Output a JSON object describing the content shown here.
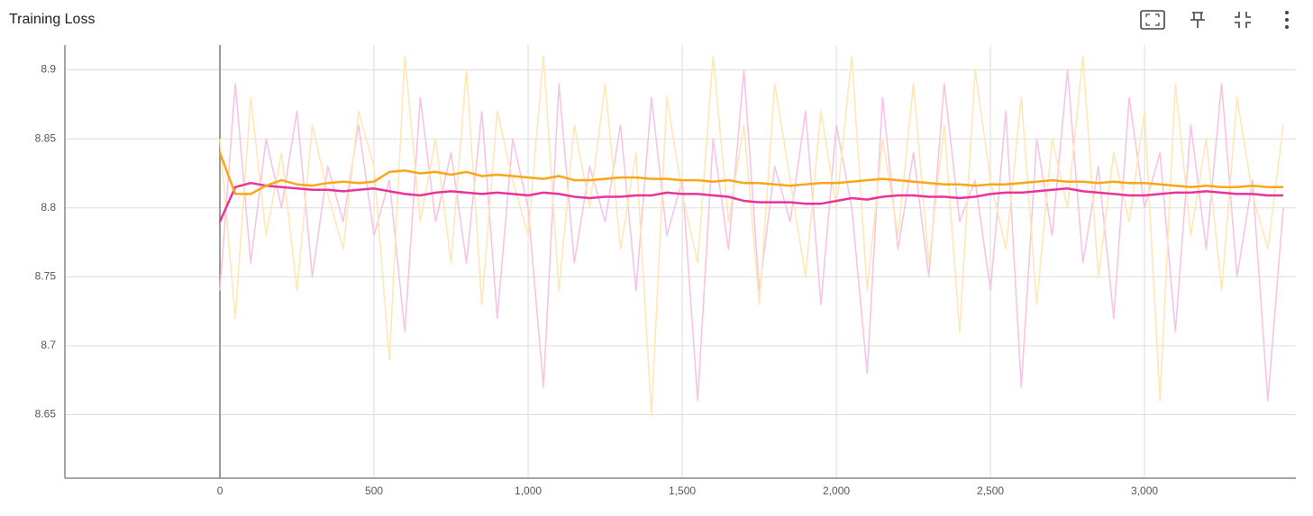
{
  "chart_data": {
    "type": "line",
    "title": "Training Loss",
    "x": [
      0,
      50,
      100,
      150,
      200,
      250,
      300,
      350,
      400,
      450,
      500,
      550,
      600,
      650,
      700,
      750,
      800,
      850,
      900,
      950,
      1000,
      1050,
      1100,
      1150,
      1200,
      1250,
      1300,
      1350,
      1400,
      1450,
      1500,
      1550,
      1600,
      1650,
      1700,
      1750,
      1800,
      1850,
      1900,
      1950,
      2000,
      2050,
      2100,
      2150,
      2200,
      2250,
      2300,
      2350,
      2400,
      2450,
      2500,
      2550,
      2600,
      2650,
      2700,
      2750,
      2800,
      2850,
      2900,
      2950,
      3000,
      3050,
      3100,
      3150,
      3200,
      3250,
      3300,
      3350,
      3400,
      3450
    ],
    "series": [
      {
        "color": "#f7c5e4",
        "values": [
          8.74,
          8.89,
          8.76,
          8.85,
          8.8,
          8.87,
          8.75,
          8.83,
          8.79,
          8.86,
          8.78,
          8.82,
          8.71,
          8.88,
          8.79,
          8.84,
          8.76,
          8.87,
          8.72,
          8.85,
          8.8,
          8.67,
          8.89,
          8.76,
          8.83,
          8.79,
          8.86,
          8.74,
          8.88,
          8.78,
          8.82,
          8.66,
          8.85,
          8.77,
          8.9,
          8.74,
          8.83,
          8.79,
          8.87,
          8.73,
          8.86,
          8.8,
          8.68,
          8.88,
          8.77,
          8.84,
          8.75,
          8.89,
          8.79,
          8.82,
          8.74,
          8.87,
          8.67,
          8.85,
          8.78,
          8.9,
          8.76,
          8.83,
          8.72,
          8.88,
          8.8,
          8.84,
          8.71,
          8.86,
          8.77,
          8.89,
          8.75,
          8.82,
          8.66,
          8.8
        ]
      },
      {
        "color": "#ffe7b6",
        "values": [
          8.85,
          8.72,
          8.88,
          8.78,
          8.84,
          8.74,
          8.86,
          8.81,
          8.77,
          8.87,
          8.83,
          8.69,
          8.91,
          8.79,
          8.85,
          8.76,
          8.9,
          8.73,
          8.87,
          8.82,
          8.78,
          8.91,
          8.74,
          8.86,
          8.8,
          8.89,
          8.77,
          8.84,
          8.65,
          8.88,
          8.81,
          8.76,
          8.91,
          8.79,
          8.86,
          8.73,
          8.89,
          8.82,
          8.75,
          8.87,
          8.8,
          8.91,
          8.74,
          8.85,
          8.78,
          8.89,
          8.76,
          8.86,
          8.71,
          8.9,
          8.82,
          8.77,
          8.88,
          8.73,
          8.85,
          8.8,
          8.91,
          8.75,
          8.84,
          8.79,
          8.87,
          8.66,
          8.89,
          8.78,
          8.85,
          8.74,
          8.88,
          8.81,
          8.77,
          8.86
        ]
      },
      {
        "color": "#e8349a",
        "values": [
          8.79,
          8.815,
          8.818,
          8.816,
          8.815,
          8.814,
          8.813,
          8.813,
          8.812,
          8.813,
          8.814,
          8.812,
          8.81,
          8.809,
          8.811,
          8.812,
          8.811,
          8.81,
          8.811,
          8.81,
          8.809,
          8.811,
          8.81,
          8.808,
          8.807,
          8.808,
          8.808,
          8.809,
          8.809,
          8.811,
          8.81,
          8.81,
          8.809,
          8.808,
          8.805,
          8.804,
          8.804,
          8.804,
          8.803,
          8.803,
          8.805,
          8.807,
          8.806,
          8.808,
          8.809,
          8.809,
          8.808,
          8.808,
          8.807,
          8.808,
          8.81,
          8.811,
          8.811,
          8.812,
          8.813,
          8.814,
          8.812,
          8.811,
          8.81,
          8.809,
          8.809,
          8.81,
          8.811,
          8.811,
          8.812,
          8.811,
          8.81,
          8.81,
          8.809,
          8.809
        ]
      },
      {
        "color": "#f9a61a",
        "values": [
          8.84,
          8.81,
          8.81,
          8.816,
          8.82,
          8.817,
          8.816,
          8.818,
          8.819,
          8.818,
          8.819,
          8.826,
          8.827,
          8.825,
          8.826,
          8.824,
          8.826,
          8.823,
          8.824,
          8.823,
          8.822,
          8.821,
          8.823,
          8.82,
          8.82,
          8.821,
          8.822,
          8.822,
          8.821,
          8.821,
          8.82,
          8.82,
          8.819,
          8.82,
          8.818,
          8.818,
          8.817,
          8.816,
          8.817,
          8.818,
          8.818,
          8.819,
          8.82,
          8.821,
          8.82,
          8.819,
          8.818,
          8.817,
          8.817,
          8.816,
          8.817,
          8.817,
          8.818,
          8.819,
          8.82,
          8.819,
          8.819,
          8.818,
          8.819,
          8.818,
          8.818,
          8.817,
          8.816,
          8.815,
          8.816,
          8.815,
          8.815,
          8.816,
          8.815,
          8.815
        ]
      }
    ],
    "xlim": [
      -503,
      3491
    ],
    "ylim": [
      8.604,
      8.918
    ],
    "xticks": [
      0,
      500,
      {
        "value": 1000,
        "label": "1,000"
      },
      {
        "value": 1500,
        "label": "1,500"
      },
      {
        "value": 2000,
        "label": "2,000"
      },
      {
        "value": 2500,
        "label": "2,500"
      },
      {
        "value": 3000,
        "label": "3,000"
      }
    ],
    "yticks": [
      8.65,
      8.7,
      8.75,
      8.8,
      8.85,
      8.9
    ],
    "grid": true
  }
}
